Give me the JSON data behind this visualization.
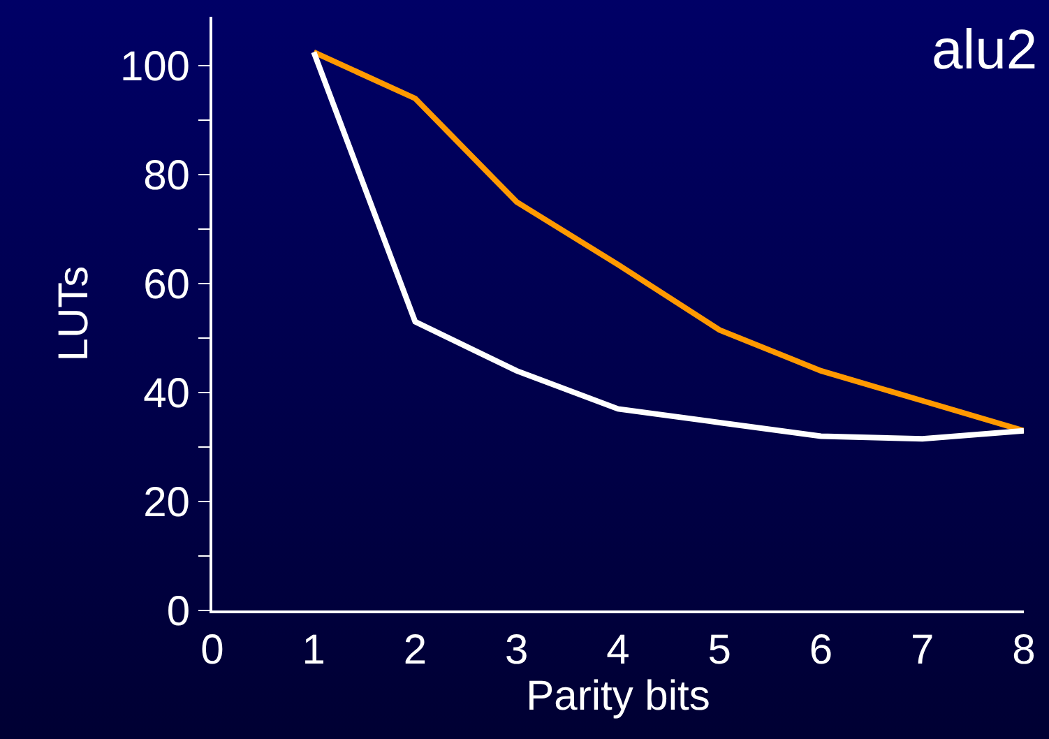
{
  "chart_data": {
    "type": "line",
    "xlabel": "Parity bits",
    "ylabel": "LUTs",
    "annotations": [
      "alu2"
    ],
    "x": [
      1,
      2,
      3,
      4,
      5,
      6,
      7,
      8
    ],
    "series": [
      {
        "color": "#ff9900",
        "values": [
          102.5,
          94,
          75,
          63.5,
          51.5,
          44,
          38.5,
          33
        ]
      },
      {
        "color": "#ffffff",
        "values": [
          102.5,
          53,
          44,
          37,
          34.5,
          32,
          31.5,
          33
        ]
      }
    ],
    "xlim": [
      0,
      8
    ],
    "xticks": [
      0,
      1,
      2,
      3,
      4,
      5,
      6,
      7,
      8
    ],
    "ylim": [
      0,
      109
    ],
    "yticks": [
      0,
      {
        "value": 10,
        "label": null
      },
      20,
      {
        "value": 30,
        "label": null
      },
      40,
      {
        "value": 50,
        "label": null
      },
      60,
      {
        "value": 70,
        "label": null
      },
      80,
      {
        "value": 90,
        "label": null
      },
      100
    ],
    "grid": false,
    "legend": false,
    "marker": "none",
    "line_style": "solid"
  }
}
